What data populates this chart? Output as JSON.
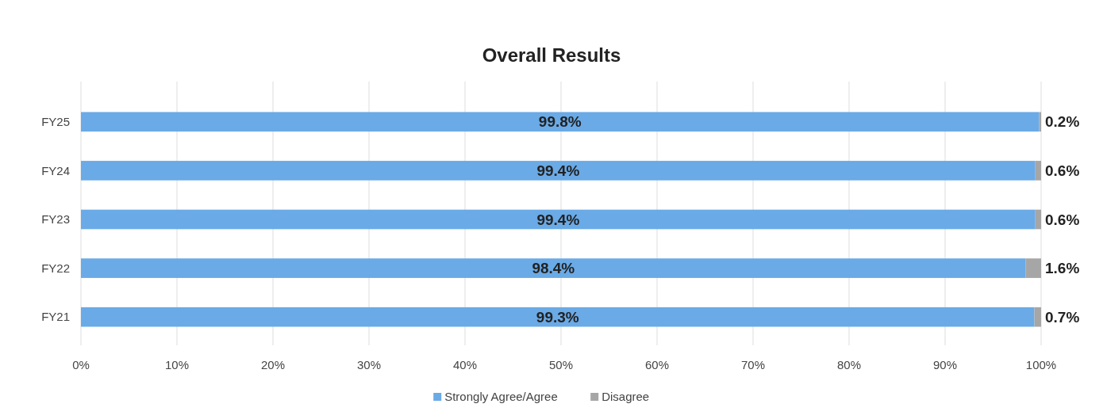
{
  "chart_data": {
    "type": "bar",
    "orientation": "horizontal",
    "stacked": true,
    "title": "Overall Results",
    "categories": [
      "FY25",
      "FY24",
      "FY23",
      "FY22",
      "FY21"
    ],
    "series": [
      {
        "name": "Strongly Agree/Agree",
        "color": "#6aaae6",
        "values": [
          99.8,
          99.4,
          99.4,
          98.4,
          99.3
        ],
        "value_labels": [
          "99.8%",
          "99.4%",
          "99.4%",
          "98.4%",
          "99.3%"
        ]
      },
      {
        "name": "Disagree",
        "color": "#a6a6a6",
        "values": [
          0.2,
          0.6,
          0.6,
          1.6,
          0.7
        ],
        "value_labels": [
          "0.2%",
          "0.6%",
          "0.6%",
          "1.6%",
          "0.7%"
        ]
      }
    ],
    "xlim": [
      0,
      100
    ],
    "xticks": [
      {
        "value": 0,
        "label": "0%"
      },
      {
        "value": 10,
        "label": "10%"
      },
      {
        "value": 20,
        "label": "20%"
      },
      {
        "value": 30,
        "label": "30%"
      },
      {
        "value": 40,
        "label": "40%"
      },
      {
        "value": 50,
        "label": "50%"
      },
      {
        "value": 60,
        "label": "60%"
      },
      {
        "value": 70,
        "label": "70%"
      },
      {
        "value": 80,
        "label": "80%"
      },
      {
        "value": 90,
        "label": "90%"
      },
      {
        "value": 100,
        "label": "100%"
      }
    ],
    "grid": "x",
    "legend": "bottom"
  }
}
